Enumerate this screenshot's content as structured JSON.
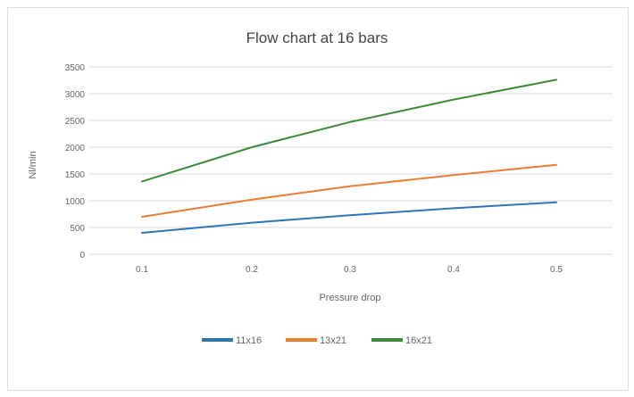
{
  "chart_data": {
    "type": "line",
    "title": "Flow chart at 16 bars",
    "xlabel": "Pressure drop",
    "ylabel": "Nl/min",
    "x": [
      "0.1",
      "0.2",
      "0.3",
      "0.4",
      "0.5"
    ],
    "ylim": [
      0,
      3500
    ],
    "yticks": [
      "0",
      "500",
      "1000",
      "1500",
      "2000",
      "2500",
      "3000",
      "3500"
    ],
    "grid": true,
    "legend_position": "bottom",
    "series": [
      {
        "name": "11x16",
        "color": "#2e75b6",
        "values": [
          400,
          590,
          730,
          860,
          970
        ]
      },
      {
        "name": "13x21",
        "color": "#ed7d31",
        "values": [
          700,
          1020,
          1270,
          1480,
          1670
        ]
      },
      {
        "name": "16x21",
        "color": "#3a8a3a",
        "values": [
          1360,
          2000,
          2470,
          2890,
          3260
        ]
      }
    ]
  }
}
